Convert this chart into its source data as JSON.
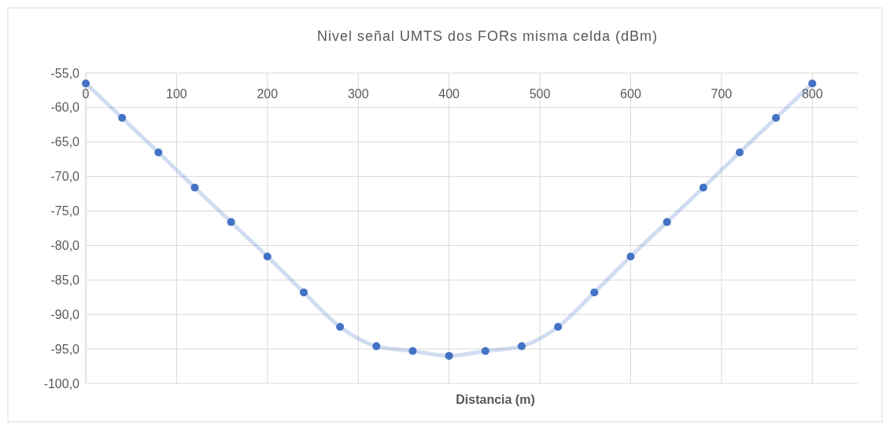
{
  "chart_data": {
    "type": "line",
    "title": "Nivel señal UMTS dos FORs misma celda (dBm)",
    "xlabel": "Distancia (m)",
    "x": [
      0,
      40,
      80,
      120,
      160,
      200,
      240,
      280,
      320,
      360,
      400,
      440,
      480,
      520,
      560,
      600,
      640,
      680,
      720,
      760,
      800
    ],
    "series": [
      {
        "color": "#4472c4",
        "values": [
          -56.5,
          -61.5,
          -66.5,
          -71.6,
          -76.6,
          -81.6,
          -86.8,
          -91.8,
          -94.6,
          -95.3,
          -96.0,
          -95.3,
          -94.6,
          -91.8,
          -86.8,
          -81.6,
          -76.6,
          -71.6,
          -66.5,
          -61.5,
          -56.5
        ]
      }
    ],
    "xlim": [
      0,
      850
    ],
    "xticks": [
      0,
      100,
      200,
      300,
      400,
      500,
      600,
      700,
      800
    ],
    "ylim": [
      -100,
      -55
    ],
    "yticks": [
      {
        "value": -100,
        "label": "-100,0"
      },
      {
        "value": -95,
        "label": "-95,0"
      },
      {
        "value": -90,
        "label": "-90,0"
      },
      {
        "value": -85,
        "label": "-85,0"
      },
      {
        "value": -80,
        "label": "-80,0"
      },
      {
        "value": -75,
        "label": "-75,0"
      },
      {
        "value": -70,
        "label": "-70,0"
      },
      {
        "value": -65,
        "label": "-65,0"
      },
      {
        "value": -60,
        "label": "-60,0"
      },
      {
        "value": -55,
        "label": "-55,0"
      }
    ],
    "grid": true,
    "marker": "circle",
    "line_style": "solid"
  }
}
